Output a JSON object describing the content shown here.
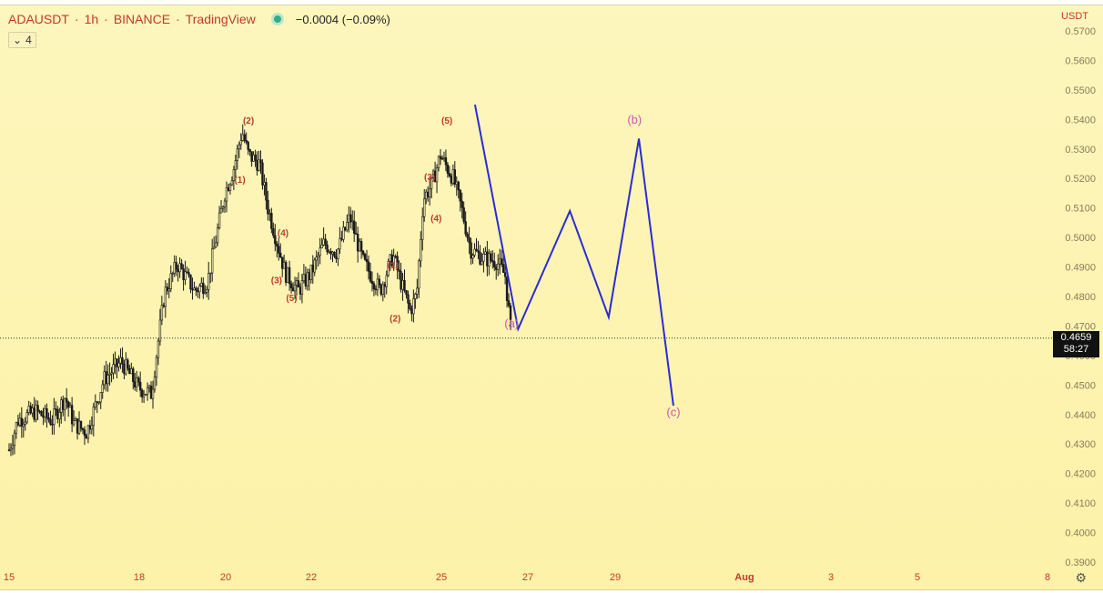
{
  "header": {
    "symbol": "ADAUSDT",
    "interval": "1h",
    "exchange": "BINANCE",
    "platform": "TradingView",
    "change": "−0.0004 (−0.09%)"
  },
  "indicator_toggle": {
    "chevron": "⌄",
    "count": "4"
  },
  "currency": "USDT",
  "price_box": {
    "price": "0.4659",
    "countdown": "58:27"
  },
  "colors": {
    "background": "#fdf4b0",
    "candle": "#1a1a1a",
    "wave_label": "#c0392b",
    "projection_line": "#2b2bd6",
    "projection_label": "#d24fbf"
  },
  "chart_data": {
    "type": "candlestick",
    "y_axis": {
      "ticks": [
        "0.5700",
        "0.5600",
        "0.5500",
        "0.5400",
        "0.5300",
        "0.5200",
        "0.5100",
        "0.5000",
        "0.4900",
        "0.4800",
        "0.4700",
        "0.4600",
        "0.4500",
        "0.4400",
        "0.4300",
        "0.4200",
        "0.4100",
        "0.4000",
        "0.3900"
      ],
      "range": [
        0.387,
        0.571
      ]
    },
    "x_axis": {
      "ticks": [
        "15",
        "18",
        "20",
        "22",
        "25",
        "27",
        "29",
        "Aug",
        "3",
        "5",
        "8"
      ]
    },
    "current_price": 0.4659,
    "price_path": [
      {
        "t": 15.0,
        "p": 0.428
      },
      {
        "t": 15.2,
        "p": 0.438
      },
      {
        "t": 15.6,
        "p": 0.441
      },
      {
        "t": 16.0,
        "p": 0.438
      },
      {
        "t": 16.3,
        "p": 0.446
      },
      {
        "t": 16.5,
        "p": 0.437
      },
      {
        "t": 16.8,
        "p": 0.434
      },
      {
        "t": 17.2,
        "p": 0.452
      },
      {
        "t": 17.6,
        "p": 0.458
      },
      {
        "t": 18.0,
        "p": 0.449
      },
      {
        "t": 18.3,
        "p": 0.447
      },
      {
        "t": 18.6,
        "p": 0.481
      },
      {
        "t": 18.9,
        "p": 0.491
      },
      {
        "t": 19.3,
        "p": 0.482
      },
      {
        "t": 19.6,
        "p": 0.485
      },
      {
        "t": 20.0,
        "p": 0.515
      },
      {
        "t": 20.2,
        "p": 0.523
      },
      {
        "t": 20.4,
        "p": 0.536
      },
      {
        "t": 20.55,
        "p": 0.528
      },
      {
        "t": 20.8,
        "p": 0.525
      },
      {
        "t": 21.0,
        "p": 0.51
      },
      {
        "t": 21.2,
        "p": 0.499
      },
      {
        "t": 21.4,
        "p": 0.488
      },
      {
        "t": 21.7,
        "p": 0.482
      },
      {
        "t": 22.0,
        "p": 0.488
      },
      {
        "t": 22.3,
        "p": 0.498
      },
      {
        "t": 22.6,
        "p": 0.495
      },
      {
        "t": 22.9,
        "p": 0.507
      },
      {
        "t": 23.2,
        "p": 0.492
      },
      {
        "t": 23.6,
        "p": 0.482
      },
      {
        "t": 23.9,
        "p": 0.494
      },
      {
        "t": 24.1,
        "p": 0.484
      },
      {
        "t": 24.3,
        "p": 0.475
      },
      {
        "t": 24.45,
        "p": 0.481
      },
      {
        "t": 24.6,
        "p": 0.513
      },
      {
        "t": 24.8,
        "p": 0.518
      },
      {
        "t": 25.0,
        "p": 0.528
      },
      {
        "t": 25.1,
        "p": 0.525
      },
      {
        "t": 25.3,
        "p": 0.52
      },
      {
        "t": 25.5,
        "p": 0.509
      },
      {
        "t": 25.7,
        "p": 0.496
      },
      {
        "t": 26.0,
        "p": 0.493
      },
      {
        "t": 26.3,
        "p": 0.492
      },
      {
        "t": 26.5,
        "p": 0.487
      },
      {
        "t": 26.65,
        "p": 0.4659
      }
    ],
    "wave_labels": [
      {
        "text": "(2)",
        "t": 20.55,
        "p": 0.5385
      },
      {
        "text": "(1)",
        "t": 20.35,
        "p": 0.5185
      },
      {
        "text": "(4)",
        "t": 21.35,
        "p": 0.5005
      },
      {
        "text": "(3)",
        "t": 21.2,
        "p": 0.4845
      },
      {
        "text": "(5)",
        "t": 21.55,
        "p": 0.4785
      },
      {
        "text": "(1)",
        "t": 23.9,
        "p": 0.4895
      },
      {
        "text": "(2)",
        "t": 23.95,
        "p": 0.4715
      },
      {
        "text": "(3)",
        "t": 24.75,
        "p": 0.5195
      },
      {
        "text": "(4)",
        "t": 24.9,
        "p": 0.5055
      },
      {
        "text": "(5)",
        "t": 25.15,
        "p": 0.5385
      }
    ],
    "projection": [
      {
        "t": 25.8,
        "p": 0.545
      },
      {
        "t": 26.8,
        "p": 0.469
      },
      {
        "t": 28.0,
        "p": 0.509
      },
      {
        "t": 28.9,
        "p": 0.473
      },
      {
        "t": 29.6,
        "p": 0.5335
      },
      {
        "t": 30.4,
        "p": 0.443
      }
    ],
    "projection_labels": [
      {
        "text": "(a)",
        "t": 26.65,
        "p": 0.4695
      },
      {
        "text": "(b)",
        "t": 29.5,
        "p": 0.5385
      },
      {
        "text": "(c)",
        "t": 30.4,
        "p": 0.4395
      }
    ]
  }
}
